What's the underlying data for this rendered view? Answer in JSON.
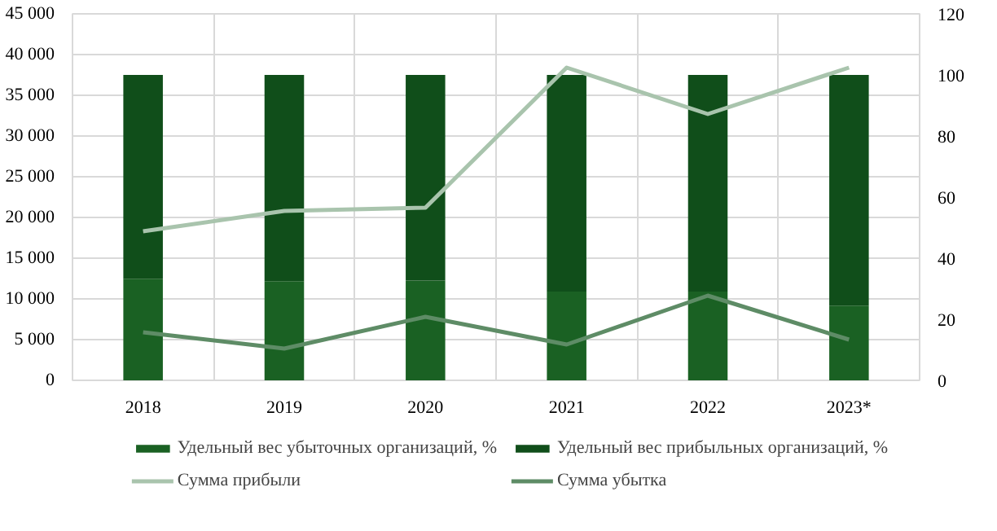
{
  "chart_data": {
    "type": "bar",
    "stacked": true,
    "categories": [
      "2018",
      "2019",
      "2020",
      "2021",
      "2022",
      "2023*"
    ],
    "series": [
      {
        "name": "Удельный вес убыточных организаций, %",
        "color": "#1a6123",
        "values": [
          33.3,
          32.5,
          32.7,
          29.1,
          29.1,
          24.5
        ],
        "axis": "y2"
      },
      {
        "name": "Удельный вес прибыльных организаций, %",
        "color": "#104e1a",
        "values": [
          66.7,
          67.5,
          67.3,
          70.9,
          70.9,
          75.5
        ],
        "axis": "y2"
      },
      {
        "name": "Сумма прибыли",
        "type": "line",
        "color": "#a9c4ad",
        "values": [
          18300,
          20800,
          21200,
          38400,
          32700,
          38400
        ]
      },
      {
        "name": "Сумма убытка",
        "type": "line",
        "color": "#5e8c66",
        "values": [
          5900,
          3900,
          7800,
          4400,
          10400,
          5000
        ]
      }
    ],
    "ylim": [
      0,
      45000
    ],
    "yticks": [
      {
        "value": 0,
        "label": "0"
      },
      {
        "value": 5000,
        "label": "5 000"
      },
      {
        "value": 10000,
        "label": "10 000"
      },
      {
        "value": 15000,
        "label": "15 000"
      },
      {
        "value": 20000,
        "label": "20 000"
      },
      {
        "value": 25000,
        "label": "25 000"
      },
      {
        "value": 30000,
        "label": "30 000"
      },
      {
        "value": 35000,
        "label": "35 000"
      },
      {
        "value": 40000,
        "label": "40 000"
      },
      {
        "value": 45000,
        "label": "45 000"
      }
    ],
    "y2lim": [
      0,
      120
    ],
    "y2ticks": [
      0,
      20,
      40,
      60,
      80,
      100,
      120
    ],
    "grid": true,
    "legend": "bottom",
    "line_style": "solid",
    "marker": "none"
  }
}
